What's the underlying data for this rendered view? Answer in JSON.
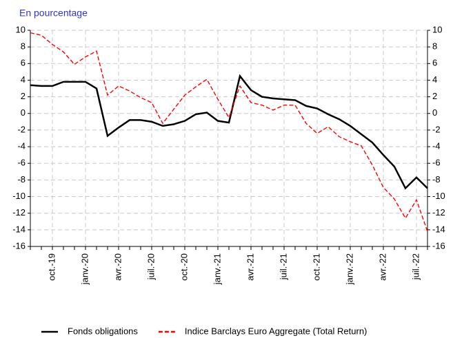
{
  "chart_data": {
    "type": "line",
    "title": "En pourcentage",
    "categories": [
      null,
      null,
      "oct.-19",
      null,
      null,
      "janv.-20",
      null,
      null,
      "avr.-20",
      null,
      null,
      "juil.-20",
      null,
      null,
      "oct.-20",
      null,
      null,
      "janv.-21",
      null,
      null,
      "avr.-21",
      null,
      null,
      "juil.-21",
      null,
      null,
      "oct.-21",
      null,
      null,
      "janv.-22",
      null,
      null,
      "avr.-22",
      null,
      null,
      "juil.-22",
      null
    ],
    "series": [
      {
        "name": "Fonds obligations",
        "color": "#000000",
        "dash": false,
        "values": [
          3.4,
          3.3,
          3.3,
          3.8,
          3.8,
          3.8,
          3.0,
          -2.7,
          -1.7,
          -0.8,
          -0.8,
          -1.0,
          -1.5,
          -1.3,
          -0.9,
          -0.1,
          0.1,
          -0.9,
          -1.1,
          4.5,
          2.8,
          2.0,
          1.8,
          1.7,
          1.6,
          0.9,
          0.6,
          -0.1,
          -0.7,
          -1.5,
          -2.5,
          -3.5,
          -5.0,
          -6.4,
          -9.0,
          -7.7,
          -9.0
        ]
      },
      {
        "name": "Indice Barclays Euro Aggregate (Total Return)",
        "color": "#ff0000",
        "dash": true,
        "values": [
          9.7,
          9.4,
          8.3,
          7.4,
          5.9,
          6.8,
          7.5,
          2.2,
          3.3,
          2.7,
          1.9,
          1.3,
          -1.2,
          0.5,
          2.2,
          3.2,
          4.1,
          1.7,
          -0.5,
          3.3,
          1.3,
          1.0,
          0.4,
          1.0,
          1.0,
          -1.2,
          -2.4,
          -1.6,
          -2.8,
          -3.4,
          -3.9,
          -6.2,
          -8.9,
          -10.3,
          -12.6,
          -10.4,
          -14.2
        ]
      }
    ],
    "ylim": [
      -16,
      10
    ],
    "yticks": [
      -16,
      -14,
      -12,
      -10,
      -8,
      -6,
      -4,
      -2,
      0,
      2,
      4,
      6,
      8,
      10
    ],
    "y2lim": [
      -16,
      10
    ],
    "y2ticks": [
      -16,
      -14,
      -12,
      -10,
      -8,
      -6,
      -4,
      -2,
      0,
      2,
      4,
      6,
      8,
      10
    ],
    "grid": true,
    "legend": "bottom"
  }
}
